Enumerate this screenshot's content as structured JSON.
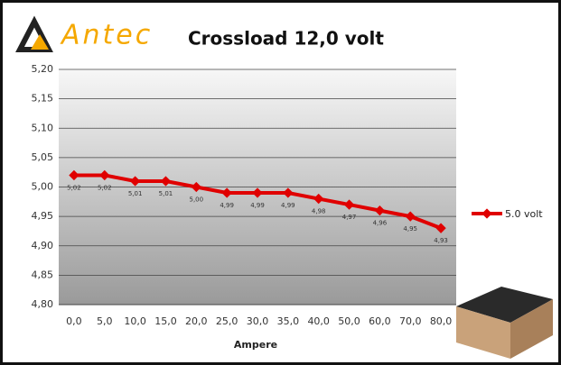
{
  "chart_data": {
    "type": "line",
    "brand": "Antec",
    "title": "Crossload 12,0 volt",
    "x_label": "Ampere",
    "categories": [
      "0,0",
      "5,0",
      "10,0",
      "15,0",
      "20,0",
      "25,0",
      "30,0",
      "35,0",
      "40,0",
      "50,0",
      "60,0",
      "70,0",
      "80,0"
    ],
    "series": [
      {
        "name": "5.0 volt",
        "color": "#e00000",
        "values": [
          5.02,
          5.02,
          5.01,
          5.01,
          5.0,
          4.99,
          4.99,
          4.99,
          4.98,
          4.97,
          4.96,
          4.95,
          4.93
        ],
        "value_labels": [
          "5,02",
          "5,02",
          "5,01",
          "5,01",
          "5,00",
          "4,99",
          "4,99",
          "4,99",
          "4,98",
          "4,97",
          "4,96",
          "4,95",
          "4,93"
        ]
      }
    ],
    "ylim": [
      4.8,
      5.2
    ],
    "yticks": [
      {
        "value": 4.8,
        "label": "4,80"
      },
      {
        "value": 4.85,
        "label": "4,85"
      },
      {
        "value": 4.9,
        "label": "4,90"
      },
      {
        "value": 4.95,
        "label": "4,95"
      },
      {
        "value": 5.0,
        "label": "5,00"
      },
      {
        "value": 5.05,
        "label": "5,05"
      },
      {
        "value": 5.1,
        "label": "5,10"
      },
      {
        "value": 5.15,
        "label": "5,15"
      },
      {
        "value": 5.2,
        "label": "5,20"
      }
    ],
    "grid": true,
    "legend": "right"
  }
}
